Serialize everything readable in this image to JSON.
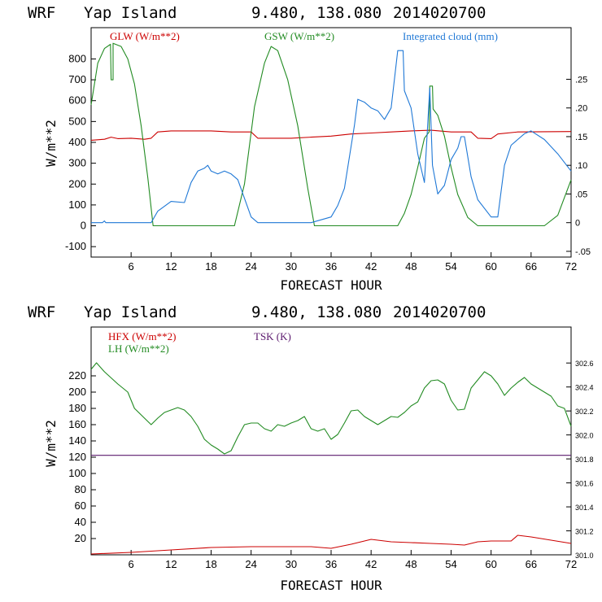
{
  "colors": {
    "red": "#cc0000",
    "green": "#228b22",
    "blue": "#1f78d6",
    "purple": "#5b1a6e",
    "black": "#000000"
  },
  "chart_data": [
    {
      "type": "line",
      "header": {
        "model": "WRF",
        "station": "Yap Island",
        "coords": "9.480, 138.080",
        "init": "2014020700"
      },
      "xlabel": "FORECAST HOUR",
      "ylabel": "W/m**2",
      "xlim": [
        0,
        72
      ],
      "x_ticks": [
        "6",
        "12",
        "18",
        "24",
        "30",
        "36",
        "42",
        "48",
        "54",
        "60",
        "66",
        "72"
      ],
      "ylim": [
        -150,
        950
      ],
      "y_ticks": [
        "-100",
        "0",
        "100",
        "200",
        "300",
        "400",
        "500",
        "600",
        "700",
        "800"
      ],
      "y2lim": [
        -0.06,
        0.34
      ],
      "y2_ticks": [
        "-.05",
        "0",
        ".05",
        ".10",
        ".15",
        ".20",
        ".25"
      ],
      "series": [
        {
          "name": "GLW (W/m**2)",
          "axis": "left",
          "color": "red",
          "points": [
            [
              0,
              410
            ],
            [
              2,
              415
            ],
            [
              3,
              425
            ],
            [
              4,
              418
            ],
            [
              6,
              420
            ],
            [
              8,
              415
            ],
            [
              9,
              420
            ],
            [
              10,
              450
            ],
            [
              12,
              455
            ],
            [
              18,
              455
            ],
            [
              21,
              450
            ],
            [
              24,
              450
            ],
            [
              25,
              420
            ],
            [
              30,
              420
            ],
            [
              33,
              425
            ],
            [
              36,
              430
            ],
            [
              39,
              440
            ],
            [
              42,
              445
            ],
            [
              45,
              450
            ],
            [
              48,
              455
            ],
            [
              51,
              458
            ],
            [
              54,
              450
            ],
            [
              57,
              450
            ],
            [
              58,
              420
            ],
            [
              60,
              418
            ],
            [
              61,
              440
            ],
            [
              64,
              450
            ],
            [
              72,
              452
            ]
          ]
        },
        {
          "name": "GSW (W/m**2)",
          "axis": "left",
          "color": "green",
          "points": [
            [
              0,
              580
            ],
            [
              1,
              780
            ],
            [
              2,
              850
            ],
            [
              2.9,
              870
            ],
            [
              3,
              700
            ],
            [
              3.3,
              700
            ],
            [
              3.3,
              875
            ],
            [
              4.5,
              860
            ],
            [
              5.5,
              800
            ],
            [
              6.5,
              680
            ],
            [
              7.5,
              480
            ],
            [
              8.5,
              230
            ],
            [
              9.3,
              0
            ],
            [
              21.5,
              0
            ],
            [
              23,
              200
            ],
            [
              24.5,
              570
            ],
            [
              26,
              780
            ],
            [
              27,
              860
            ],
            [
              28,
              840
            ],
            [
              29.5,
              700
            ],
            [
              31,
              480
            ],
            [
              32.5,
              180
            ],
            [
              33.5,
              0
            ],
            [
              46,
              0
            ],
            [
              47,
              60
            ],
            [
              48,
              150
            ],
            [
              49,
              280
            ],
            [
              50,
              420
            ],
            [
              50.7,
              450
            ],
            [
              50.8,
              670
            ],
            [
              51.2,
              670
            ],
            [
              51.3,
              560
            ],
            [
              52,
              530
            ],
            [
              53,
              430
            ],
            [
              54,
              280
            ],
            [
              55,
              150
            ],
            [
              56.5,
              40
            ],
            [
              58,
              0
            ],
            [
              68,
              0
            ],
            [
              70,
              50
            ],
            [
              72,
              220
            ]
          ]
        },
        {
          "name": "Integrated cloud (mm)",
          "axis": "right",
          "color": "blue",
          "points": [
            [
              0,
              0
            ],
            [
              1.7,
              0
            ],
            [
              2,
              0.003
            ],
            [
              2.2,
              0
            ],
            [
              9,
              0
            ],
            [
              10,
              0.02
            ],
            [
              12,
              0.037
            ],
            [
              14,
              0.035
            ],
            [
              15,
              0.07
            ],
            [
              16,
              0.09
            ],
            [
              17,
              0.095
            ],
            [
              17.5,
              0.1
            ],
            [
              18,
              0.09
            ],
            [
              19,
              0.085
            ],
            [
              20,
              0.09
            ],
            [
              21,
              0.085
            ],
            [
              22,
              0.075
            ],
            [
              24,
              0.01
            ],
            [
              25,
              0
            ],
            [
              33,
              0
            ],
            [
              36,
              0.01
            ],
            [
              37,
              0.03
            ],
            [
              38,
              0.06
            ],
            [
              39.5,
              0.17
            ],
            [
              40,
              0.215
            ],
            [
              41,
              0.21
            ],
            [
              42,
              0.2
            ],
            [
              43,
              0.195
            ],
            [
              44,
              0.18
            ],
            [
              45,
              0.2
            ],
            [
              46,
              0.3
            ],
            [
              46.8,
              0.3
            ],
            [
              47,
              0.23
            ],
            [
              48,
              0.2
            ],
            [
              49,
              0.12
            ],
            [
              50,
              0.07
            ],
            [
              50.8,
              0.235
            ],
            [
              51.2,
              0.1
            ],
            [
              52,
              0.05
            ],
            [
              53,
              0.065
            ],
            [
              54,
              0.11
            ],
            [
              55,
              0.13
            ],
            [
              55.5,
              0.15
            ],
            [
              56,
              0.15
            ],
            [
              57,
              0.08
            ],
            [
              58,
              0.04
            ],
            [
              60,
              0.01
            ],
            [
              61,
              0.01
            ],
            [
              62,
              0.1
            ],
            [
              63,
              0.135
            ],
            [
              65,
              0.155
            ],
            [
              66,
              0.16
            ],
            [
              68,
              0.145
            ],
            [
              70,
              0.12
            ],
            [
              71,
              0.105
            ],
            [
              72,
              0.09
            ]
          ]
        }
      ]
    },
    {
      "type": "line",
      "header": {
        "model": "WRF",
        "station": "Yap Island",
        "coords": "9.480, 138.080",
        "init": "2014020700"
      },
      "xlabel": "FORECAST HOUR",
      "ylabel": "W/m**2",
      "xlim": [
        0,
        72
      ],
      "x_ticks": [
        "6",
        "12",
        "18",
        "24",
        "30",
        "36",
        "42",
        "48",
        "54",
        "60",
        "66",
        "72"
      ],
      "ylim": [
        0,
        280
      ],
      "y_ticks": [
        "20",
        "40",
        "60",
        "80",
        "100",
        "120",
        "140",
        "160",
        "180",
        "200",
        "220"
      ],
      "y2lim": [
        301.0,
        302.9
      ],
      "y2_ticks": [
        "301.0",
        "301.2",
        "301.4",
        "301.6",
        "301.8",
        "302.0",
        "302.2",
        "302.4",
        "302.6"
      ],
      "series": [
        {
          "name": "HFX (W/m**2)",
          "axis": "left",
          "color": "red",
          "points": [
            [
              0,
              1
            ],
            [
              6,
              3
            ],
            [
              12,
              6
            ],
            [
              18,
              9
            ],
            [
              24,
              10
            ],
            [
              30,
              10
            ],
            [
              33,
              10
            ],
            [
              36,
              8
            ],
            [
              39,
              13
            ],
            [
              42,
              19
            ],
            [
              45,
              16
            ],
            [
              48,
              15
            ],
            [
              51,
              14
            ],
            [
              54,
              13
            ],
            [
              56,
              12
            ],
            [
              58,
              16
            ],
            [
              60,
              17
            ],
            [
              63,
              17
            ],
            [
              64,
              24
            ],
            [
              66,
              22
            ],
            [
              69,
              18
            ],
            [
              72,
              14
            ]
          ]
        },
        {
          "name": "LH (W/m**2)",
          "axis": "left",
          "color": "green",
          "points": [
            [
              0,
              228
            ],
            [
              0.8,
              236
            ],
            [
              2,
              225
            ],
            [
              4,
              210
            ],
            [
              5.5,
              200
            ],
            [
              6.5,
              180
            ],
            [
              7.5,
              172
            ],
            [
              9,
              160
            ],
            [
              10,
              168
            ],
            [
              11,
              175
            ],
            [
              12,
              178
            ],
            [
              13,
              181
            ],
            [
              14,
              178
            ],
            [
              15,
              170
            ],
            [
              16,
              158
            ],
            [
              17,
              142
            ],
            [
              18,
              135
            ],
            [
              19,
              130
            ],
            [
              20,
              124
            ],
            [
              21,
              128
            ],
            [
              22,
              145
            ],
            [
              23,
              160
            ],
            [
              24,
              162
            ],
            [
              25,
              162
            ],
            [
              26,
              155
            ],
            [
              27,
              152
            ],
            [
              28,
              160
            ],
            [
              29,
              158
            ],
            [
              30,
              162
            ],
            [
              31,
              165
            ],
            [
              32,
              170
            ],
            [
              33,
              155
            ],
            [
              34,
              152
            ],
            [
              35,
              155
            ],
            [
              36,
              142
            ],
            [
              37,
              148
            ],
            [
              38,
              162
            ],
            [
              39,
              177
            ],
            [
              40,
              178
            ],
            [
              41,
              170
            ],
            [
              42,
              165
            ],
            [
              43,
              160
            ],
            [
              44,
              165
            ],
            [
              45,
              170
            ],
            [
              46,
              169
            ],
            [
              47,
              175
            ],
            [
              48,
              183
            ],
            [
              49,
              188
            ],
            [
              50,
              205
            ],
            [
              51,
              214
            ],
            [
              52,
              215
            ],
            [
              53,
              210
            ],
            [
              54,
              190
            ],
            [
              55,
              178
            ],
            [
              56,
              179
            ],
            [
              57,
              205
            ],
            [
              58,
              215
            ],
            [
              59,
              225
            ],
            [
              60,
              220
            ],
            [
              61,
              210
            ],
            [
              62,
              196
            ],
            [
              63,
              205
            ],
            [
              64,
              212
            ],
            [
              65,
              218
            ],
            [
              66,
              210
            ],
            [
              67,
              205
            ],
            [
              68,
              200
            ],
            [
              69,
              195
            ],
            [
              70,
              183
            ],
            [
              71,
              180
            ],
            [
              72,
              158
            ]
          ]
        },
        {
          "name": "TSK (K)",
          "axis": "right",
          "color": "purple",
          "points": [
            [
              0,
              301.83
            ],
            [
              72,
              301.83
            ]
          ]
        }
      ]
    }
  ]
}
